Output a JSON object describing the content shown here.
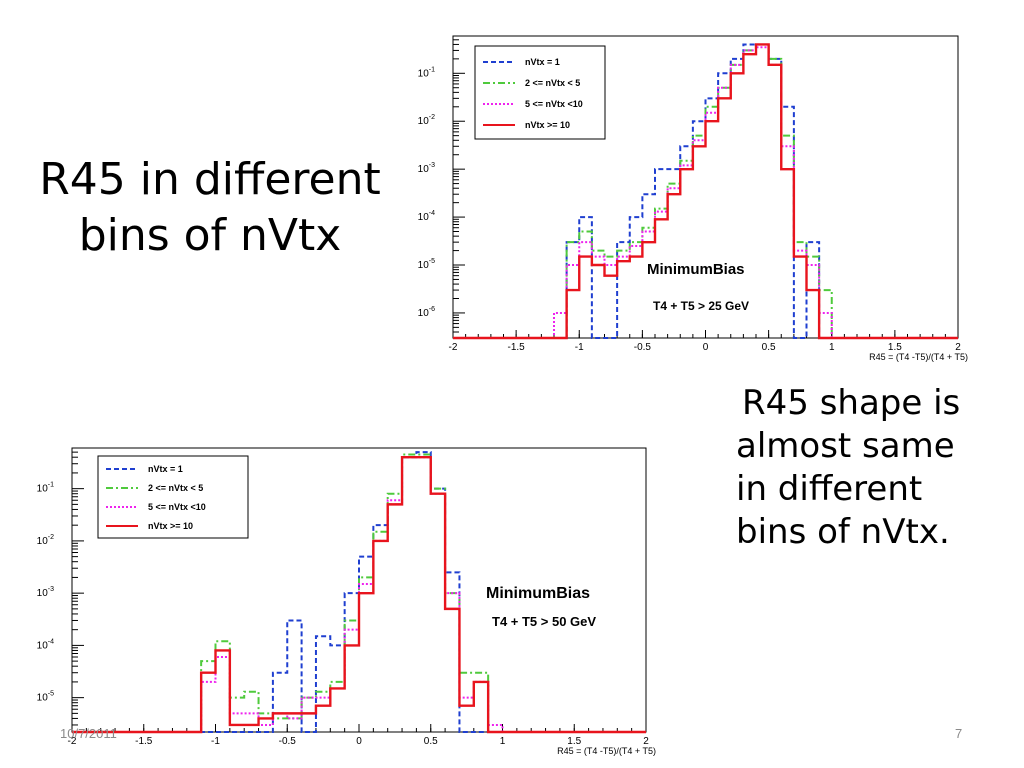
{
  "slide": {
    "title_lines": [
      "R45 in different",
      "bins of nVtx"
    ],
    "note_lines": [
      "R45 shape is",
      "almost same",
      "in different",
      "bins of nVtx."
    ],
    "footer_date": "10/7/2011",
    "page_number": "7"
  },
  "chart_data": [
    {
      "type": "line",
      "title": "",
      "xlabel": "R45 = (T4 -T5)/(T4 + T5)",
      "ylabel": "",
      "xlim": [
        -2,
        2
      ],
      "ylim": [
        3e-07,
        0.6
      ],
      "y_scale": "log",
      "x_ticks": [
        -2,
        -1.5,
        -1,
        -0.5,
        0,
        0.5,
        1,
        1.5,
        2
      ],
      "y_tick_labels": [
        "10^-6",
        "10^-5",
        "10^-4",
        "10^-3",
        "10^-2",
        "10^-1"
      ],
      "grid": false,
      "legend_position": "top-left",
      "annotations": [
        "MinimumBias",
        "T4 + T5 > 25 GeV"
      ],
      "bins": [
        -1.2,
        -1.1,
        -1.0,
        -0.9,
        -0.8,
        -0.7,
        -0.6,
        -0.5,
        -0.4,
        -0.3,
        -0.2,
        -0.1,
        0.0,
        0.1,
        0.2,
        0.3,
        0.4,
        0.5,
        0.6,
        0.7,
        0.8,
        0.9,
        1.0,
        1.1
      ],
      "series": [
        {
          "name": "nVtx = 1",
          "color": "#1f3fd0",
          "dash": "dashed",
          "values": [
            0,
            3e-05,
            0.0001,
            0,
            0,
            3e-05,
            0.0001,
            0.0003,
            0.001,
            0.001,
            0.003,
            0.01,
            0.03,
            0.1,
            0.2,
            0.4,
            0.4,
            0.2,
            0.02,
            0,
            3e-05,
            0,
            0,
            0
          ]
        },
        {
          "name": "2 <= nVtx < 5",
          "color": "#4fca3c",
          "dash": "dashdot",
          "values": [
            0,
            3e-05,
            5e-05,
            2e-05,
            1.5e-05,
            2e-05,
            3e-05,
            6e-05,
            0.00015,
            0.0005,
            0.0015,
            0.005,
            0.02,
            0.05,
            0.15,
            0.3,
            0.4,
            0.2,
            0.005,
            3e-05,
            1.5e-05,
            3e-06,
            0,
            0
          ]
        },
        {
          "name": "5 <= nVtx <10",
          "color": "#ee22ee",
          "dash": "dotted",
          "values": [
            1e-06,
            1e-05,
            3e-05,
            1.5e-05,
            1e-05,
            1.5e-05,
            2.5e-05,
            5e-05,
            0.00013,
            0.0004,
            0.0012,
            0.004,
            0.015,
            0.05,
            0.15,
            0.3,
            0.35,
            0.15,
            0.003,
            2e-05,
            1e-05,
            1e-06,
            0,
            0
          ]
        },
        {
          "name": "nVtx >= 10",
          "color": "#e8141d",
          "dash": "solid",
          "values": [
            0,
            3e-06,
            1.5e-05,
            1e-05,
            6e-06,
            1.2e-05,
            1.5e-05,
            3e-05,
            9e-05,
            0.0003,
            0.001,
            0.003,
            0.01,
            0.03,
            0.1,
            0.25,
            0.4,
            0.15,
            0.001,
            1.5e-05,
            3e-06,
            0,
            0,
            0
          ]
        }
      ]
    },
    {
      "type": "line",
      "title": "",
      "xlabel": "R45 = (T4 -T5)/(T4 + T5)",
      "ylabel": "",
      "xlim": [
        -2,
        2
      ],
      "ylim": [
        2.2e-06,
        0.6
      ],
      "y_scale": "log",
      "x_ticks": [
        -2,
        -1.5,
        -1,
        -0.5,
        0,
        0.5,
        1,
        1.5,
        2
      ],
      "y_tick_labels": [
        "10^-5",
        "10^-4",
        "10^-3",
        "10^-2",
        "10^-1"
      ],
      "grid": false,
      "legend_position": "top-left",
      "annotations": [
        "MinimumBias",
        "T4 + T5 > 50 GeV"
      ],
      "bins": [
        -1.1,
        -1.0,
        -0.9,
        -0.8,
        -0.7,
        -0.6,
        -0.5,
        -0.4,
        -0.3,
        -0.2,
        -0.1,
        0.0,
        0.1,
        0.2,
        0.3,
        0.4,
        0.5,
        0.6,
        0.7,
        0.8,
        0.9
      ],
      "series": [
        {
          "name": "nVtx = 1",
          "color": "#1f3fd0",
          "dash": "dashed",
          "values": [
            0,
            0,
            0,
            0,
            0,
            3e-05,
            0.0003,
            0,
            0.00015,
            0.0001,
            0.001,
            0.005,
            0.02,
            0.05,
            0.4,
            0.5,
            0.1,
            0.0025,
            0,
            0,
            0
          ]
        },
        {
          "name": "2 <= nVtx < 5",
          "color": "#4fca3c",
          "dash": "dashdot",
          "values": [
            5e-05,
            0.00012,
            1e-05,
            1.3e-05,
            5e-06,
            4e-06,
            4e-06,
            1e-05,
            1.3e-05,
            2e-05,
            0.0003,
            0.002,
            0.015,
            0.08,
            0.45,
            0.45,
            0.1,
            0.001,
            3e-05,
            3e-05,
            0
          ]
        },
        {
          "name": "5 <= nVtx <10",
          "color": "#ee22ee",
          "dash": "dotted",
          "values": [
            2e-05,
            6e-05,
            5e-06,
            5e-06,
            3e-06,
            5e-06,
            4e-06,
            1e-05,
            1e-05,
            1.5e-05,
            0.0002,
            0.0015,
            0.01,
            0.06,
            0.4,
            0.4,
            0.08,
            0.001,
            1e-05,
            2e-05,
            3e-06
          ]
        },
        {
          "name": "nVtx >= 10",
          "color": "#e8141d",
          "dash": "solid",
          "values": [
            3e-05,
            8e-05,
            3e-06,
            3e-06,
            4e-06,
            5e-06,
            5e-06,
            5e-06,
            7e-06,
            1.5e-05,
            0.0001,
            0.001,
            0.01,
            0.05,
            0.4,
            0.4,
            0.08,
            0.0005,
            7e-06,
            2e-05,
            0
          ]
        }
      ]
    }
  ]
}
